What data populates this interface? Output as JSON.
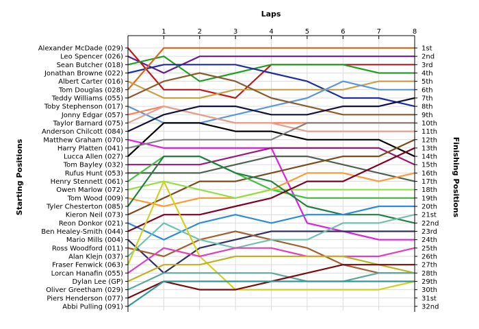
{
  "chart_data": {
    "type": "line",
    "title": "Laps",
    "ylabel_left": "Starting Positions",
    "ylabel_right": "Finishing Positions",
    "x_ticks": [
      "1",
      "2",
      "3",
      "4",
      "5",
      "6",
      "7",
      "8"
    ],
    "start_labels": [
      "Alexander McDade (029)",
      "Leo Spencer (026)",
      "Sean Butcher (018)",
      "Jonathan Browne (022)",
      "Albert Carter (016)",
      "Tom Douglas (028)",
      "Teddy Williams (055)",
      "Toby Stephenson (017)",
      "Jonny Edgar (057)",
      "Taylor Barnard (075)",
      "Anderson Chilcott (084)",
      "Matthew Graham (070)",
      "Harry Platten (041)",
      "Lucca Allen (027)",
      "Tom Bayley (032)",
      "Rufus Hunt (053)",
      "Henry Stennett (061)",
      "Owen Marlow (072)",
      "Tom Wood (009)",
      "Tyler Chesterton (085)",
      "Kieron Neil (073)",
      "Reon Donkor (021)",
      "Ben Healey-Smith (044)",
      "Mario Mills (004)",
      "Ross Woodford (011)",
      "Alan Klejn (037)",
      "Fraser Fenwick (063)",
      "Lorcan Hanafin (055)",
      "Dylan Lee (GP)",
      "Oliver Greetham (029)",
      "Piers Henderson (077)",
      "Abbi Pulling (091)"
    ],
    "finish_labels": [
      "1st",
      "2nd",
      "3rd",
      "4th",
      "5th",
      "6th",
      "7th",
      "8th",
      "9th",
      "10th",
      "11th",
      "12th",
      "13th",
      "14th",
      "15th",
      "16th",
      "17th",
      "18th",
      "19th",
      "20th",
      "21st",
      "22nd",
      "23rd",
      "24th",
      "25th",
      "26th",
      "27th",
      "28th",
      "29th",
      "30th",
      "31st",
      "32nd"
    ],
    "series": [
      {
        "color": "#c01818",
        "values": [
          1,
          6,
          6,
          7,
          3,
          3,
          3,
          3,
          3
        ]
      },
      {
        "color": "#6a1a8a",
        "values": [
          2,
          4,
          2,
          2,
          2,
          2,
          2,
          2,
          2
        ]
      },
      {
        "color": "#20a020",
        "values": [
          3,
          2,
          5,
          4,
          3,
          3,
          3,
          4,
          4
        ]
      },
      {
        "color": "#1c2ea0",
        "values": [
          4,
          3,
          3,
          3,
          4,
          5,
          7,
          7,
          8
        ]
      },
      {
        "color": "#d86a18",
        "values": [
          6,
          1,
          1,
          1,
          1,
          1,
          1,
          1,
          1
        ]
      },
      {
        "color": "#c8a040",
        "values": [
          5,
          7,
          7,
          6,
          6,
          6,
          6,
          5,
          5
        ]
      },
      {
        "color": "#5a96d8",
        "values": [
          8,
          10,
          10,
          9,
          8,
          7,
          5,
          6,
          6
        ]
      },
      {
        "color": "#8b5a2b",
        "values": [
          7,
          5,
          4,
          5,
          7,
          8,
          9,
          9,
          9
        ]
      },
      {
        "color": "#ff7f50",
        "values": [
          9,
          8,
          9,
          10,
          10,
          10,
          10,
          10,
          10
        ]
      },
      {
        "color": "#e0a090",
        "values": [
          10,
          8,
          9,
          10,
          10,
          11,
          11,
          11,
          11
        ]
      },
      {
        "color": "#10103a",
        "values": [
          11,
          9,
          8,
          8,
          9,
          9,
          8,
          8,
          7
        ]
      },
      {
        "color": "#000000",
        "values": [
          14,
          10,
          10,
          11,
          11,
          12,
          12,
          12,
          14
        ]
      },
      {
        "color": "#e020e0",
        "values": [
          12,
          13,
          13,
          13,
          13,
          22,
          23,
          24,
          24
        ]
      },
      {
        "color": "#808080",
        "values": [
          13,
          12,
          12,
          12,
          12,
          10,
          10,
          10,
          10
        ]
      },
      {
        "color": "#9a1878",
        "values": [
          15,
          15,
          15,
          14,
          13,
          13,
          13,
          13,
          15
        ]
      },
      {
        "color": "#506050",
        "values": [
          16,
          16,
          16,
          15,
          14,
          14,
          15,
          16,
          17
        ]
      },
      {
        "color": "#7a4a1a",
        "values": [
          21,
          19,
          17,
          17,
          16,
          15,
          14,
          14,
          12
        ]
      },
      {
        "color": "#ff9a30",
        "values": [
          19,
          20,
          19,
          19,
          18,
          16,
          16,
          17,
          16
        ]
      },
      {
        "color": "#40c040",
        "values": [
          17,
          14,
          14,
          16,
          18,
          19,
          19,
          19,
          19
        ]
      },
      {
        "color": "#90e040",
        "values": [
          18,
          17,
          18,
          19,
          18,
          18,
          18,
          18,
          18
        ]
      },
      {
        "color": "#208040",
        "values": [
          20,
          14,
          14,
          16,
          17,
          20,
          21,
          21,
          22
        ]
      },
      {
        "color": "#2a8cd8",
        "values": [
          22,
          24,
          22,
          21,
          22,
          21,
          21,
          20,
          20
        ]
      },
      {
        "color": "#800020",
        "values": [
          23,
          21,
          21,
          20,
          19,
          17,
          17,
          15,
          13
        ]
      },
      {
        "color": "#303060",
        "values": [
          24,
          28,
          25,
          24,
          23,
          23,
          23,
          23,
          23
        ]
      },
      {
        "color": "#a06030",
        "values": [
          25,
          26,
          24,
          23,
          24,
          25,
          27,
          28,
          28
        ]
      },
      {
        "color": "#70c0b0",
        "values": [
          26,
          22,
          24,
          25,
          24,
          24,
          22,
          22,
          21
        ]
      },
      {
        "color": "#d0d020",
        "values": [
          27,
          17,
          26,
          30,
          30,
          30,
          30,
          30,
          29
        ]
      },
      {
        "color": "#e040c0",
        "values": [
          28,
          25,
          26,
          25,
          25,
          26,
          26,
          26,
          25
        ]
      },
      {
        "color": "#c0b020",
        "values": [
          29,
          27,
          27,
          26,
          26,
          26,
          26,
          27,
          28
        ]
      },
      {
        "color": "#5aa8a0",
        "values": [
          30,
          28,
          28,
          28,
          28,
          29,
          29,
          28,
          28
        ]
      },
      {
        "color": "#7a0a10",
        "values": [
          31,
          29,
          30,
          30,
          29,
          28,
          27,
          27,
          27
        ]
      },
      {
        "color": "#2a9a9a",
        "values": [
          32,
          29,
          29,
          29,
          29,
          29,
          29,
          29,
          29
        ]
      }
    ],
    "grid": true
  }
}
